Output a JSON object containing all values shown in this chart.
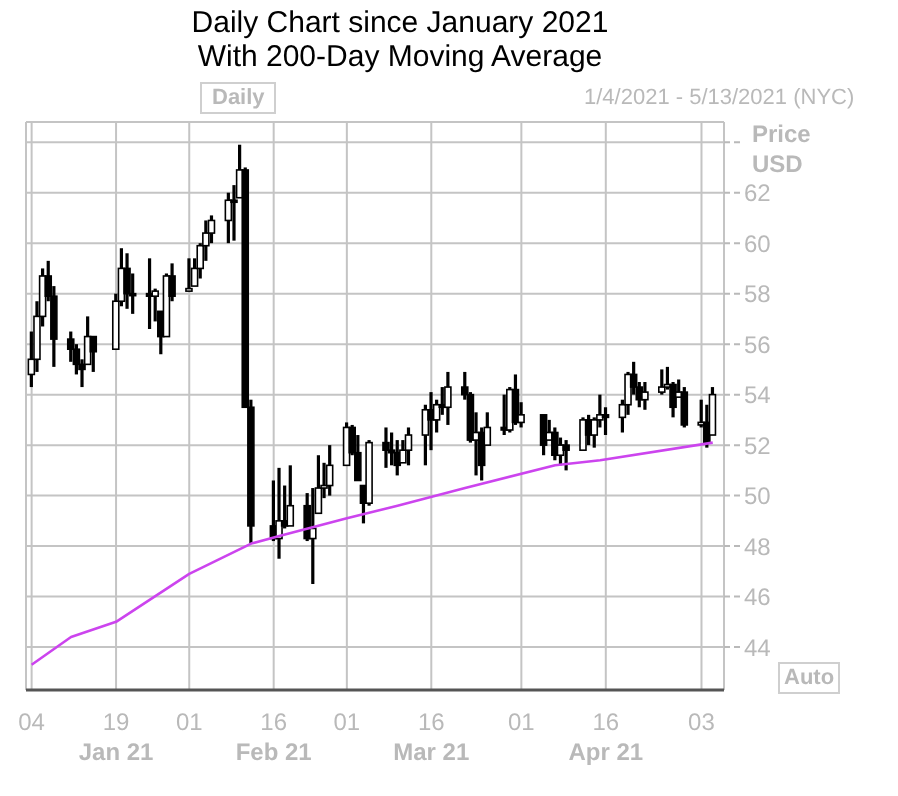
{
  "chart_data": {
    "type": "candlestick",
    "title": "Daily Chart since January 2021",
    "subtitle": "With 200-Day Moving Average",
    "ylabel": "Price USD",
    "color": "#000000",
    "x": [
      "2021-01-04",
      "2021-01-05",
      "2021-01-06",
      "2021-01-07",
      "2021-01-08",
      "2021-01-11",
      "2021-01-12",
      "2021-01-13",
      "2021-01-14",
      "2021-01-15",
      "2021-01-19",
      "2021-01-20",
      "2021-01-21",
      "2021-01-22",
      "2021-01-25",
      "2021-01-26",
      "2021-01-27",
      "2021-01-28",
      "2021-01-29",
      "2021-02-01",
      "2021-02-02",
      "2021-02-03",
      "2021-02-04",
      "2021-02-05",
      "2021-02-08",
      "2021-02-09",
      "2021-02-10",
      "2021-02-11",
      "2021-02-12",
      "2021-02-16",
      "2021-02-17",
      "2021-02-18",
      "2021-02-19",
      "2021-02-22",
      "2021-02-23",
      "2021-02-24",
      "2021-02-25",
      "2021-02-26",
      "2021-03-01",
      "2021-03-02",
      "2021-03-03",
      "2021-03-04",
      "2021-03-05",
      "2021-03-08",
      "2021-03-09",
      "2021-03-10",
      "2021-03-11",
      "2021-03-12",
      "2021-03-15",
      "2021-03-16",
      "2021-03-17",
      "2021-03-18",
      "2021-03-19",
      "2021-03-22",
      "2021-03-23",
      "2021-03-24",
      "2021-03-25",
      "2021-03-26",
      "2021-03-29",
      "2021-03-30",
      "2021-03-31",
      "2021-04-01",
      "2021-04-05",
      "2021-04-06",
      "2021-04-07",
      "2021-04-08",
      "2021-04-09",
      "2021-04-12",
      "2021-04-13",
      "2021-04-14",
      "2021-04-15",
      "2021-04-16",
      "2021-04-19",
      "2021-04-20",
      "2021-04-21",
      "2021-04-22",
      "2021-04-23",
      "2021-04-26",
      "2021-04-27",
      "2021-04-28",
      "2021-04-29",
      "2021-04-30",
      "2021-05-03",
      "2021-05-04",
      "2021-05-05"
    ],
    "ohlc": [
      [
        54.8,
        56.5,
        54.3,
        55.4
      ],
      [
        55.4,
        57.7,
        54.9,
        57.1
      ],
      [
        57.1,
        59.0,
        56.7,
        58.7
      ],
      [
        58.7,
        59.3,
        57.7,
        57.9
      ],
      [
        57.9,
        58.3,
        55.1,
        56.2
      ],
      [
        56.2,
        56.5,
        55.3,
        55.8
      ],
      [
        55.8,
        56.0,
        54.8,
        55.2
      ],
      [
        55.2,
        55.4,
        54.3,
        55.0
      ],
      [
        55.2,
        57.1,
        55.2,
        56.3
      ],
      [
        56.3,
        56.3,
        54.9,
        55.7
      ],
      [
        55.8,
        58.0,
        55.8,
        57.7
      ],
      [
        57.7,
        59.8,
        57.5,
        59.0
      ],
      [
        59.0,
        59.6,
        57.4,
        58.0
      ],
      [
        58.0,
        58.8,
        57.2,
        58.0
      ],
      [
        58.0,
        59.4,
        56.6,
        57.9
      ],
      [
        57.9,
        58.2,
        56.9,
        58.1
      ],
      [
        57.3,
        57.3,
        55.6,
        56.3
      ],
      [
        56.3,
        58.8,
        56.3,
        58.7
      ],
      [
        58.7,
        59.2,
        57.7,
        57.9
      ],
      [
        58.1,
        59.4,
        58.1,
        58.2
      ],
      [
        58.3,
        59.4,
        58.3,
        59.0
      ],
      [
        59.0,
        60.0,
        58.6,
        59.9
      ],
      [
        59.9,
        60.9,
        59.3,
        60.4
      ],
      [
        60.4,
        61.1,
        60.0,
        60.9
      ],
      [
        60.9,
        62.0,
        60.0,
        61.7
      ],
      [
        61.7,
        62.3,
        60.1,
        61.7
      ],
      [
        61.8,
        63.9,
        61.8,
        62.9
      ],
      [
        62.9,
        63.0,
        53.5,
        53.5
      ],
      [
        53.5,
        53.8,
        48.1,
        48.8
      ],
      [
        48.8,
        50.6,
        48.2,
        48.3
      ],
      [
        48.3,
        51.1,
        47.5,
        49.0
      ],
      [
        49.0,
        50.4,
        48.7,
        48.8
      ],
      [
        48.8,
        51.2,
        48.8,
        49.6
      ],
      [
        49.6,
        50.1,
        48.2,
        48.3
      ],
      [
        48.3,
        50.3,
        46.5,
        48.7
      ],
      [
        49.3,
        51.6,
        49.3,
        50.3
      ],
      [
        50.3,
        51.3,
        49.9,
        50.4
      ],
      [
        50.4,
        52.0,
        50.0,
        51.2
      ],
      [
        51.2,
        52.9,
        51.2,
        52.7
      ],
      [
        52.7,
        52.8,
        51.6,
        51.7
      ],
      [
        51.7,
        52.4,
        50.6,
        50.6
      ],
      [
        50.4,
        50.4,
        48.9,
        49.7
      ],
      [
        49.7,
        52.2,
        49.6,
        52.1
      ],
      [
        52.1,
        52.7,
        51.1,
        51.8
      ],
      [
        51.8,
        52.5,
        51.2,
        51.7
      ],
      [
        51.7,
        52.2,
        50.8,
        51.2
      ],
      [
        51.3,
        52.2,
        51.3,
        51.8
      ],
      [
        51.8,
        52.7,
        51.2,
        52.4
      ],
      [
        52.4,
        53.6,
        51.2,
        53.4
      ],
      [
        53.4,
        54.1,
        51.8,
        53.0
      ],
      [
        53.0,
        53.8,
        52.5,
        53.6
      ],
      [
        53.6,
        54.3,
        53.2,
        53.5
      ],
      [
        53.5,
        54.9,
        52.8,
        54.3
      ],
      [
        54.3,
        54.9,
        53.8,
        54.0
      ],
      [
        54.0,
        54.1,
        52.1,
        52.2
      ],
      [
        52.2,
        53.3,
        50.8,
        52.5
      ],
      [
        52.5,
        52.7,
        50.6,
        51.2
      ],
      [
        52.0,
        53.3,
        52.0,
        52.7
      ],
      [
        52.7,
        54.0,
        52.4,
        52.6
      ],
      [
        52.6,
        54.3,
        52.5,
        54.2
      ],
      [
        54.2,
        54.8,
        52.8,
        52.9
      ],
      [
        52.9,
        53.7,
        52.7,
        53.2
      ],
      [
        53.2,
        53.2,
        51.6,
        52.0
      ],
      [
        52.2,
        53.0,
        52.2,
        52.5
      ],
      [
        52.5,
        52.7,
        51.4,
        51.6
      ],
      [
        51.6,
        52.3,
        51.2,
        52.0
      ],
      [
        52.0,
        52.2,
        51.0,
        51.8
      ],
      [
        51.8,
        53.1,
        51.8,
        53.0
      ],
      [
        53.0,
        53.2,
        52.0,
        52.4
      ],
      [
        52.4,
        53.1,
        51.9,
        53.0
      ],
      [
        53.0,
        54.0,
        52.7,
        53.2
      ],
      [
        53.2,
        53.5,
        52.4,
        53.1
      ],
      [
        53.1,
        53.8,
        52.5,
        53.6
      ],
      [
        53.6,
        54.9,
        53.2,
        54.8
      ],
      [
        54.8,
        55.3,
        54.0,
        54.3
      ],
      [
        54.3,
        54.5,
        53.5,
        53.8
      ],
      [
        53.8,
        54.5,
        53.4,
        54.1
      ],
      [
        54.1,
        55.0,
        54.0,
        54.3
      ],
      [
        54.3,
        55.1,
        54.2,
        54.4
      ],
      [
        54.4,
        54.5,
        53.1,
        53.5
      ],
      [
        53.9,
        54.6,
        53.9,
        54.1
      ],
      [
        54.1,
        54.3,
        52.7,
        52.8
      ],
      [
        52.8,
        53.8,
        52.7,
        52.9
      ],
      [
        52.9,
        53.6,
        51.9,
        52.1
      ],
      [
        52.4,
        54.3,
        52.4,
        54.0
      ]
    ],
    "series": [
      {
        "type": "line",
        "color": "#cc44ee",
        "x": [
          "2021-01-04",
          "2021-01-11",
          "2021-01-19",
          "2021-02-01",
          "2021-02-12",
          "2021-02-17",
          "2021-03-01",
          "2021-03-10",
          "2021-03-22",
          "2021-04-07",
          "2021-04-15",
          "2021-05-05"
        ],
        "values": [
          43.3,
          44.4,
          45.0,
          46.9,
          48.1,
          48.4,
          49.1,
          49.6,
          50.3,
          51.2,
          51.4,
          52.1
        ]
      }
    ],
    "xlim": [
      "2021-01-03",
      "2021-05-07"
    ],
    "xticks": [
      {
        "value": "2021-01-04",
        "label": "04"
      },
      {
        "value": "2021-01-19",
        "label": "19\nJan 21"
      },
      {
        "value": "2021-02-01",
        "label": "01"
      },
      {
        "value": "2021-02-16",
        "label": "16\nFeb 21"
      },
      {
        "value": "2021-03-01",
        "label": "01"
      },
      {
        "value": "2021-03-16",
        "label": "16\nMar 21"
      },
      {
        "value": "2021-04-01",
        "label": "01"
      },
      {
        "value": "2021-04-16",
        "label": "16\nApr 21"
      },
      {
        "value": "2021-05-03",
        "label": "03"
      }
    ],
    "ylim": [
      42.3,
      64.8
    ],
    "yticks": [
      44,
      46,
      48,
      50,
      52,
      54,
      56,
      58,
      60,
      62,
      {
        "value": 64,
        "label": null
      }
    ],
    "grid": true,
    "annotations": [
      "Daily",
      "1/4/2021 - 5/13/2021 (NYC)",
      "Auto"
    ]
  }
}
